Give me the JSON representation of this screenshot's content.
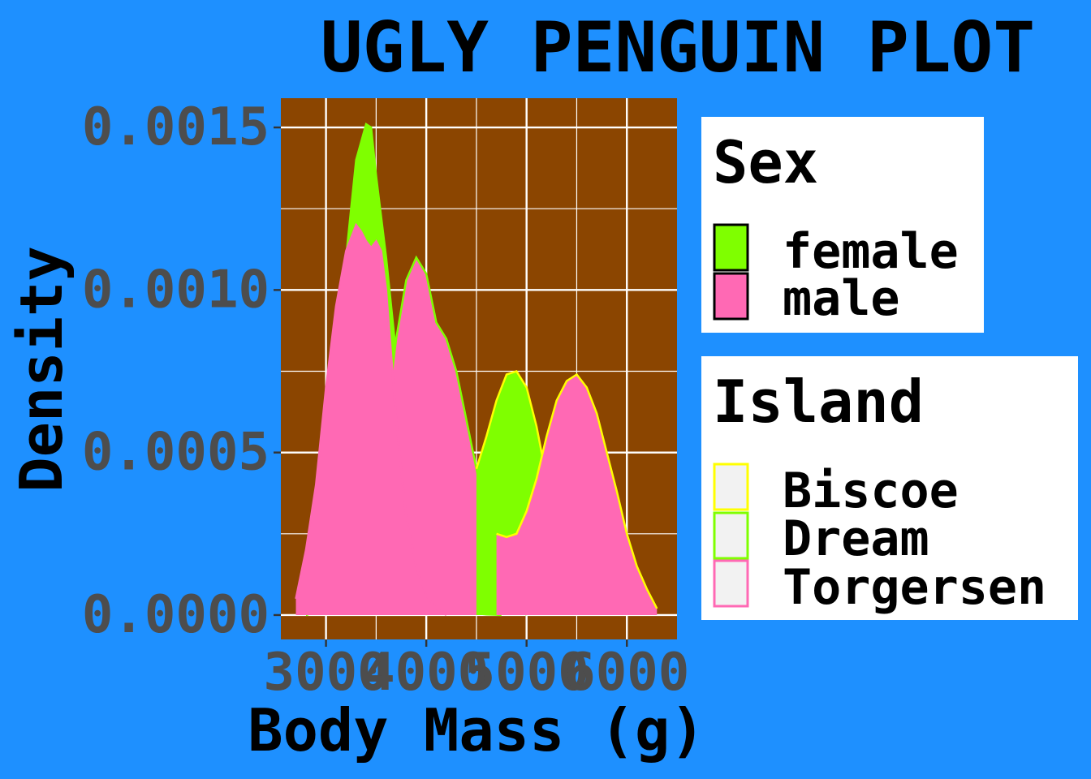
{
  "chart_data": {
    "type": "area",
    "title": "UGLY PENGUIN PLOT",
    "xlabel": "Body Mass (g)",
    "ylabel": "Density",
    "xlim": [
      2550,
      6500
    ],
    "ylim": [
      -7.5e-05,
      0.00159
    ],
    "x_ticks": [
      3000,
      4000,
      5000,
      6000
    ],
    "x_tick_labels": [
      "3000",
      "4000",
      "5000",
      "6000"
    ],
    "y_ticks": [
      0,
      0.0005,
      0.001,
      0.0015
    ],
    "y_tick_labels": [
      "0.0000",
      "0.0005",
      "0.0010",
      "0.0015"
    ],
    "grid": true,
    "plot_background": "#8B4500",
    "legends": [
      {
        "title": "Sex",
        "aesthetic": "fill",
        "entries": [
          {
            "label": "female",
            "color": "#7FFF00"
          },
          {
            "label": "male",
            "color": "#FF69B4"
          }
        ]
      },
      {
        "title": "Island",
        "aesthetic": "outline",
        "entries": [
          {
            "label": "Biscoe",
            "color": "#FFFF00"
          },
          {
            "label": "Dream",
            "color": "#7FFF00"
          },
          {
            "label": "Torgersen",
            "color": "#FF69B4"
          }
        ]
      }
    ],
    "series": [
      {
        "sex": "female",
        "island": "Dream",
        "fill": "#7FFF00",
        "outline": "#7FFF00",
        "x": [
          2700,
          2800,
          2900,
          3000,
          3100,
          3200,
          3300,
          3400,
          3450,
          3500,
          3600,
          3700,
          3800,
          3900,
          4000,
          4100,
          4200,
          4300,
          4400,
          4500,
          4600,
          4700,
          4750
        ],
        "y": [
          5e-05,
          0.0001,
          0.00025,
          0.00045,
          0.00075,
          0.0011,
          0.0014,
          0.00151,
          0.0015,
          0.00135,
          0.0011,
          0.0008,
          0.00055,
          0.00035,
          0.0002,
          0.0001,
          5e-05,
          2e-05,
          1e-05,
          5e-06,
          2e-06,
          1e-06,
          0
        ]
      },
      {
        "sex": "male",
        "island": "Dream",
        "fill": "#FF69B4",
        "outline": "#7FFF00",
        "x": [
          2800,
          3000,
          3200,
          3300,
          3400,
          3500,
          3600,
          3700,
          3800,
          3900,
          4000,
          4100,
          4200,
          4300,
          4400,
          4500,
          4600,
          4700,
          4800,
          4900,
          5000
        ],
        "y": [
          0,
          2e-05,
          8e-05,
          0.00015,
          0.00025,
          0.0004,
          0.0006,
          0.00085,
          0.00103,
          0.0011,
          0.00105,
          0.0009,
          0.00085,
          0.00075,
          0.0006,
          0.00045,
          0.0003,
          0.00018,
          0.0001,
          5e-05,
          0
        ]
      },
      {
        "sex": "female",
        "island": "Biscoe",
        "fill": "#7FFF00",
        "outline": "#FFFF00",
        "x": [
          4500,
          4600,
          4700,
          4800,
          4900,
          5000,
          5100,
          5200,
          5300,
          5400,
          5500
        ],
        "y": [
          0.00045,
          0.00055,
          0.00066,
          0.00074,
          0.00075,
          0.0007,
          0.00058,
          0.00042,
          0.00028,
          0.00018,
          0.0001
        ]
      },
      {
        "sex": "male",
        "island": "Biscoe",
        "fill": "#FF69B4",
        "outline": "#FFFF00",
        "x": [
          4700,
          4800,
          4900,
          5000,
          5100,
          5200,
          5300,
          5400,
          5500,
          5600,
          5700,
          5800,
          5900,
          6000,
          6100,
          6200,
          6300
        ],
        "y": [
          0.00025,
          0.00024,
          0.00025,
          0.00032,
          0.00042,
          0.00055,
          0.00066,
          0.00072,
          0.00074,
          0.0007,
          0.00062,
          0.0005,
          0.00038,
          0.00025,
          0.00015,
          8e-05,
          2e-05
        ]
      },
      {
        "sex": "male",
        "island": "Torgersen",
        "fill": "#FF69B4",
        "outline": "#FF69B4",
        "x": [
          2700,
          2800,
          2900,
          3000,
          3100,
          3200,
          3300,
          3350,
          3400,
          3450,
          3500,
          3550,
          3600,
          3650,
          3700,
          3750,
          3800,
          3900,
          4000,
          4100,
          4200
        ],
        "y": [
          5e-05,
          0.0002,
          0.0004,
          0.0007,
          0.00095,
          0.00112,
          0.0012,
          0.00118,
          0.00115,
          0.00113,
          0.00115,
          0.00112,
          0.001,
          0.0008,
          0.0006,
          0.00045,
          0.0003,
          0.00015,
          6e-05,
          2e-05,
          0
        ]
      }
    ]
  }
}
